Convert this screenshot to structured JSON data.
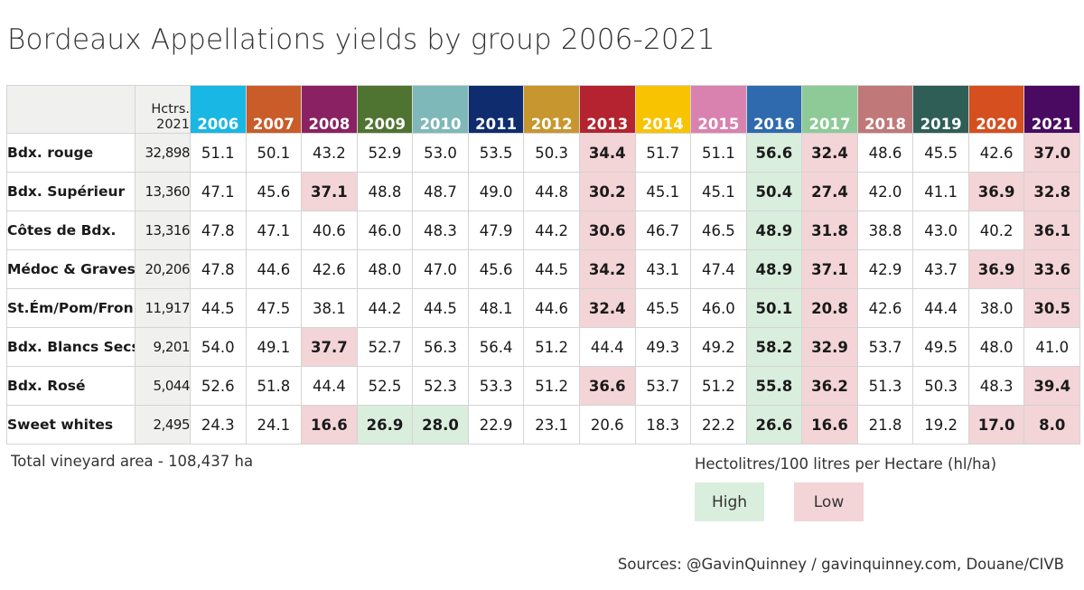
{
  "title": "Bordeaux Appellations yields by group 2006-2021",
  "hectares_header": [
    "Hctrs.",
    "2021"
  ],
  "years": [
    "2006",
    "2007",
    "2008",
    "2009",
    "2010",
    "2011",
    "2012",
    "2013",
    "2014",
    "2015",
    "2016",
    "2017",
    "2018",
    "2019",
    "2020",
    "2021"
  ],
  "year_colors": [
    "#19b7e3",
    "#c95c28",
    "#8a2162",
    "#4f7432",
    "#7fb8b8",
    "#0f2d6e",
    "#c8962e",
    "#b4232f",
    "#f8c300",
    "#d982b0",
    "#2e6aad",
    "#8dca98",
    "#c07878",
    "#2f5e56",
    "#d64f1f",
    "#4b0a61"
  ],
  "colors": {
    "high": "#daeedd",
    "low": "#f3d4d7",
    "label_bg": "#f0f1ef"
  },
  "legend": {
    "unit": "Hectolitres/100 litres per Hectare (hl/ha)",
    "high": "High",
    "low": "Low"
  },
  "footer": {
    "total": "Total vineyard area - 108,437 ha",
    "sources": "Sources: @GavinQuinney / gavinquinney.com, Douane/CIVB"
  },
  "chart_data": {
    "type": "table",
    "title": "Bordeaux Appellations yields by group 2006-2021",
    "columns": [
      "Hctrs. 2021",
      "2006",
      "2007",
      "2008",
      "2009",
      "2010",
      "2011",
      "2012",
      "2013",
      "2014",
      "2015",
      "2016",
      "2017",
      "2018",
      "2019",
      "2020",
      "2021"
    ],
    "rows": [
      {
        "label": "Bdx. rouge",
        "hectares": "32,898",
        "values": [
          "51.1",
          "50.1",
          "43.2",
          "52.9",
          "53.0",
          "53.5",
          "50.3",
          "34.4",
          "51.7",
          "51.1",
          "56.6",
          "32.4",
          "48.6",
          "45.5",
          "42.6",
          "37.0"
        ],
        "highlight": [
          "",
          "",
          "",
          "",
          "",
          "",
          "",
          "low",
          "",
          "",
          "high",
          "low",
          "",
          "",
          "",
          "low"
        ]
      },
      {
        "label": "Bdx. Supérieur",
        "hectares": "13,360",
        "values": [
          "47.1",
          "45.6",
          "37.1",
          "48.8",
          "48.7",
          "49.0",
          "44.8",
          "30.2",
          "45.1",
          "45.1",
          "50.4",
          "27.4",
          "42.0",
          "41.1",
          "36.9",
          "32.8"
        ],
        "highlight": [
          "",
          "",
          "low",
          "",
          "",
          "",
          "",
          "low",
          "",
          "",
          "high",
          "low",
          "",
          "",
          "low",
          "low"
        ]
      },
      {
        "label": "Côtes de Bdx.",
        "hectares": "13,316",
        "values": [
          "47.8",
          "47.1",
          "40.6",
          "46.0",
          "48.3",
          "47.9",
          "44.2",
          "30.6",
          "46.7",
          "46.5",
          "48.9",
          "31.8",
          "38.8",
          "43.0",
          "40.2",
          "36.1"
        ],
        "highlight": [
          "",
          "",
          "",
          "",
          "",
          "",
          "",
          "low",
          "",
          "",
          "high",
          "low",
          "",
          "",
          "",
          "low"
        ]
      },
      {
        "label": "Médoc & Graves",
        "hectares": "20,206",
        "values": [
          "47.8",
          "44.6",
          "42.6",
          "48.0",
          "47.0",
          "45.6",
          "44.5",
          "34.2",
          "43.1",
          "47.4",
          "48.9",
          "37.1",
          "42.9",
          "43.7",
          "36.9",
          "33.6"
        ],
        "highlight": [
          "",
          "",
          "",
          "",
          "",
          "",
          "",
          "low",
          "",
          "",
          "high",
          "low",
          "",
          "",
          "low",
          "low"
        ]
      },
      {
        "label": "St.Ém/Pom/Fron.",
        "hectares": "11,917",
        "values": [
          "44.5",
          "47.5",
          "38.1",
          "44.2",
          "44.5",
          "48.1",
          "44.6",
          "32.4",
          "45.5",
          "46.0",
          "50.1",
          "20.8",
          "42.6",
          "44.4",
          "38.0",
          "30.5"
        ],
        "highlight": [
          "",
          "",
          "",
          "",
          "",
          "",
          "",
          "low",
          "",
          "",
          "high",
          "low",
          "",
          "",
          "",
          "low"
        ]
      },
      {
        "label": "Bdx. Blancs Secs",
        "hectares": "9,201",
        "values": [
          "54.0",
          "49.1",
          "37.7",
          "52.7",
          "56.3",
          "56.4",
          "51.2",
          "44.4",
          "49.3",
          "49.2",
          "58.2",
          "32.9",
          "53.7",
          "49.5",
          "48.0",
          "41.0"
        ],
        "highlight": [
          "",
          "",
          "low",
          "",
          "",
          "",
          "",
          "",
          "",
          "",
          "high",
          "low",
          "",
          "",
          "",
          ""
        ]
      },
      {
        "label": "Bdx. Rosé",
        "hectares": "5,044",
        "values": [
          "52.6",
          "51.8",
          "44.4",
          "52.5",
          "52.3",
          "53.3",
          "51.2",
          "36.6",
          "53.7",
          "51.2",
          "55.8",
          "36.2",
          "51.3",
          "50.3",
          "48.3",
          "39.4"
        ],
        "highlight": [
          "",
          "",
          "",
          "",
          "",
          "",
          "",
          "low",
          "",
          "",
          "high",
          "low",
          "",
          "",
          "",
          "low"
        ]
      },
      {
        "label": "Sweet whites",
        "hectares": "2,495",
        "values": [
          "24.3",
          "24.1",
          "16.6",
          "26.9",
          "28.0",
          "22.9",
          "23.1",
          "20.6",
          "18.3",
          "22.2",
          "26.6",
          "16.6",
          "21.8",
          "19.2",
          "17.0",
          "8.0"
        ],
        "highlight": [
          "",
          "",
          "low",
          "high",
          "high",
          "",
          "",
          "",
          "",
          "",
          "high",
          "low",
          "",
          "",
          "low",
          "low"
        ]
      }
    ]
  }
}
